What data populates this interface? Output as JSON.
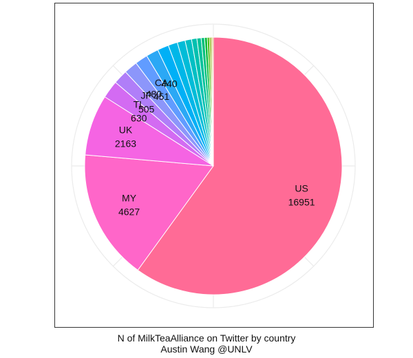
{
  "chart_data": {
    "type": "pie",
    "title": "",
    "caption": [
      "N of MilkTeaAlliance on Twitter by country",
      "Austin Wang @UNLV"
    ],
    "start": "12 o'clock",
    "direction": "clockwise",
    "polar_grid": true,
    "legend": "none",
    "slices": [
      {
        "label": "US",
        "value": 16951,
        "color": "#FF6B96",
        "show_value": true
      },
      {
        "label": "MY",
        "value": 4627,
        "color": "#FF66C9",
        "show_value": true
      },
      {
        "label": "UK",
        "value": 2163,
        "color": "#F564E3",
        "show_value": true
      },
      {
        "label": "TL",
        "value": 630,
        "color": "#D36BF2",
        "show_value": true
      },
      {
        "label": "JP",
        "value": 505,
        "color": "#B07EF8",
        "show_value": true
      },
      {
        "label": "",
        "value": 480,
        "color": "#8C96FA",
        "show_value": true
      },
      {
        "label": "CA",
        "value": 451,
        "color": "#619CFF",
        "show_value": true
      },
      {
        "label": "",
        "value": 440,
        "color": "#2BA8F5",
        "show_value": true
      },
      {
        "label": "",
        "value": 400,
        "color": "#00B0F6",
        "show_value": false
      },
      {
        "label": "",
        "value": 330,
        "color": "#00B7E8",
        "show_value": false
      },
      {
        "label": "",
        "value": 280,
        "color": "#00BCD8",
        "show_value": false
      },
      {
        "label": "",
        "value": 230,
        "color": "#00BFC4",
        "show_value": false
      },
      {
        "label": "",
        "value": 190,
        "color": "#00C0B0",
        "show_value": false
      },
      {
        "label": "",
        "value": 150,
        "color": "#00C19A",
        "show_value": false
      },
      {
        "label": "",
        "value": 120,
        "color": "#00BF7D",
        "show_value": false
      },
      {
        "label": "",
        "value": 95,
        "color": "#00BA38",
        "show_value": false
      },
      {
        "label": "",
        "value": 75,
        "color": "#39B600",
        "show_value": false
      },
      {
        "label": "",
        "value": 60,
        "color": "#7CAE00",
        "show_value": false
      },
      {
        "label": "",
        "value": 45,
        "color": "#A3A500",
        "show_value": false
      },
      {
        "label": "",
        "value": 35,
        "color": "#B79F00",
        "show_value": false
      }
    ]
  }
}
